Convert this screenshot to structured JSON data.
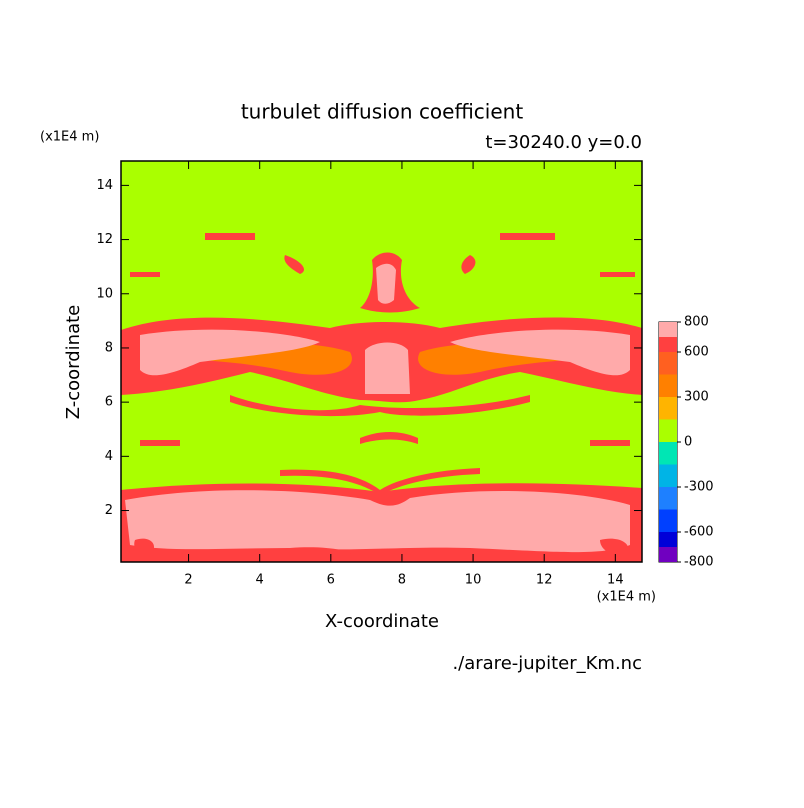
{
  "chart_data": {
    "type": "contour",
    "title": "turbulet diffusion coefficient",
    "subtitle": "t=30240.0 y=0.0",
    "x_label": "X-coordinate",
    "y_label": "Z-coordinate",
    "x_unit": "(x1E4 m)",
    "y_unit": "(x1E4 m)",
    "source": "./arare-jupiter_Km.nc",
    "xlim": [
      0.1,
      14.75
    ],
    "ylim": [
      0.1,
      14.9
    ],
    "xticks": [
      2,
      4,
      6,
      8,
      10,
      12,
      14
    ],
    "yticks": [
      2,
      4,
      6,
      8,
      10,
      12,
      14
    ],
    "levels": [
      -800,
      -700,
      -600,
      -450,
      -300,
      -150,
      0,
      150,
      300,
      450,
      600,
      700,
      800
    ],
    "colors": [
      "#7000c0",
      "#0000d8",
      "#0040ff",
      "#1e80ff",
      "#00b4e6",
      "#00e6b4",
      "#aaff00",
      "#ffb400",
      "#ff8000",
      "#ff6020",
      "#ff4040",
      "#ffaaaa"
    ],
    "colorbar_ticks": [
      -800,
      -600,
      -300,
      0,
      300,
      600,
      800
    ]
  }
}
